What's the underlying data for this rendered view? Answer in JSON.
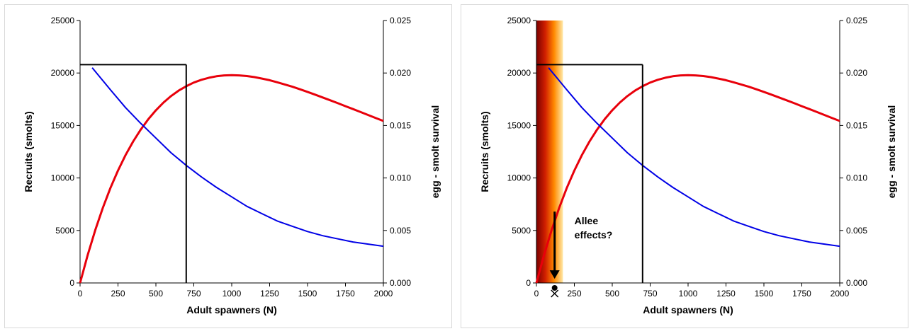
{
  "chart_data": [
    {
      "type": "line",
      "panel": "left",
      "xlabel": "Adult spawners (N)",
      "ylabel": "Recruits (smolts)",
      "y2label": "egg - smolt survival",
      "xlim": [
        0,
        2000
      ],
      "ylim": [
        0,
        25000
      ],
      "y2lim": [
        0,
        0.025
      ],
      "xticks": [
        "0",
        "250",
        "500",
        "750",
        "1000",
        "1250",
        "1500",
        "1750",
        "2000"
      ],
      "yticks": [
        "0",
        "5000",
        "10000",
        "15000",
        "20000",
        "25000"
      ],
      "y2ticks": [
        "0.000",
        "0.005",
        "0.010",
        "0.015",
        "0.020",
        "0.025"
      ],
      "series": [
        {
          "axis": "left",
          "color": "#e8000b",
          "x": [
            0,
            50,
            100,
            150,
            200,
            250,
            300,
            350,
            400,
            450,
            500,
            550,
            600,
            650,
            700,
            750,
            800,
            850,
            900,
            950,
            1000,
            1050,
            1100,
            1150,
            1200,
            1250,
            1300,
            1350,
            1400,
            1450,
            1500,
            1550,
            1600,
            1650,
            1700,
            1750,
            1800,
            1850,
            1900,
            1950,
            2000
          ],
          "values": [
            0,
            2650,
            5030,
            7150,
            9040,
            10710,
            12180,
            13480,
            14610,
            15600,
            16450,
            17180,
            17800,
            18320,
            18740,
            19090,
            19350,
            19550,
            19690,
            19770,
            19790,
            19770,
            19710,
            19610,
            19470,
            19310,
            19120,
            18910,
            18690,
            18450,
            18200,
            17940,
            17670,
            17400,
            17120,
            16840,
            16560,
            16280,
            16000,
            15710,
            15430
          ]
        },
        {
          "axis": "right",
          "color": "#0000e6",
          "x": [
            80,
            200,
            300,
            400,
            500,
            600,
            700,
            800,
            900,
            1000,
            1100,
            1200,
            1300,
            1400,
            1500,
            1600,
            1700,
            1800,
            1900,
            2000
          ],
          "values": [
            0.0205,
            0.0184,
            0.0167,
            0.0152,
            0.0138,
            0.0124,
            0.0112,
            0.0101,
            0.0091,
            0.0082,
            0.0073,
            0.0066,
            0.0059,
            0.0054,
            0.0049,
            0.0045,
            0.0042,
            0.0039,
            0.0037,
            0.0035
          ]
        }
      ],
      "reference_lines": {
        "color": "#000000",
        "x": 700,
        "y": 20800
      }
    },
    {
      "type": "line",
      "panel": "right",
      "xlabel": "Adult spawners (N)",
      "ylabel": "Recruits (smolts)",
      "y2label": "egg - smolt survival",
      "xlim": [
        0,
        2000
      ],
      "ylim": [
        0,
        25000
      ],
      "y2lim": [
        0,
        0.025
      ],
      "xticks": [
        "0",
        "250",
        "500",
        "750",
        "1000",
        "1250",
        "1500",
        "1750",
        "2000"
      ],
      "yticks": [
        "0",
        "5000",
        "10000",
        "15000",
        "20000",
        "25000"
      ],
      "y2ticks": [
        "0.000",
        "0.005",
        "0.010",
        "0.015",
        "0.020",
        "0.025"
      ],
      "series": [
        {
          "axis": "left",
          "color": "#e8000b",
          "x": [
            0,
            50,
            100,
            150,
            200,
            250,
            300,
            350,
            400,
            450,
            500,
            550,
            600,
            650,
            700,
            750,
            800,
            850,
            900,
            950,
            1000,
            1050,
            1100,
            1150,
            1200,
            1250,
            1300,
            1350,
            1400,
            1450,
            1500,
            1550,
            1600,
            1650,
            1700,
            1750,
            1800,
            1850,
            1900,
            1950,
            2000
          ],
          "values": [
            0,
            2650,
            5030,
            7150,
            9040,
            10710,
            12180,
            13480,
            14610,
            15600,
            16450,
            17180,
            17800,
            18320,
            18740,
            19090,
            19350,
            19550,
            19690,
            19770,
            19790,
            19770,
            19710,
            19610,
            19470,
            19310,
            19120,
            18910,
            18690,
            18450,
            18200,
            17940,
            17670,
            17400,
            17120,
            16840,
            16560,
            16280,
            16000,
            15710,
            15430
          ]
        },
        {
          "axis": "right",
          "color": "#0000e6",
          "x": [
            80,
            200,
            300,
            400,
            500,
            600,
            700,
            800,
            900,
            1000,
            1100,
            1200,
            1300,
            1400,
            1500,
            1600,
            1700,
            1800,
            1900,
            2000
          ],
          "values": [
            0.0205,
            0.0184,
            0.0167,
            0.0152,
            0.0138,
            0.0124,
            0.0112,
            0.0101,
            0.0091,
            0.0082,
            0.0073,
            0.0066,
            0.0059,
            0.0054,
            0.0049,
            0.0045,
            0.0042,
            0.0039,
            0.0037,
            0.0035
          ]
        }
      ],
      "reference_lines": {
        "color": "#000000",
        "x": 700,
        "y": 20800
      },
      "shaded_band": {
        "x_range": [
          0,
          175
        ],
        "colors": [
          "#7a0000",
          "#d11f00",
          "#ff8a00",
          "#ffe9a8"
        ]
      },
      "annotation": {
        "lines": [
          "Allee",
          "effects?"
        ],
        "arrow_x": 120,
        "arrow_from_y": 6800,
        "arrow_to_y": 400
      },
      "marker_icon": "skull-crossbones-icon"
    }
  ]
}
